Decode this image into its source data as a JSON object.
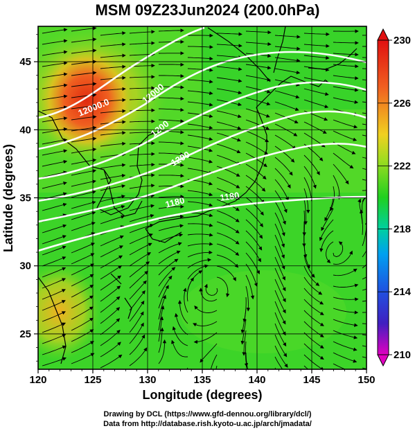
{
  "title": "MSM 09Z23Jun2024 (200.0hPa)",
  "x_axis": {
    "label": "Longitude (degrees)",
    "ticks": [
      "120",
      "125",
      "130",
      "135",
      "140",
      "145",
      "150"
    ],
    "range": [
      120,
      150
    ]
  },
  "y_axis": {
    "label": "Latitude  (degrees)",
    "ticks": [
      "25",
      "30",
      "35",
      "40",
      "45"
    ],
    "range": [
      22.4,
      47.6
    ]
  },
  "colorbar": {
    "labels": [
      "230",
      "226",
      "222",
      "218",
      "214",
      "210"
    ],
    "range": [
      210,
      230
    ],
    "colors": [
      "#e000c0",
      "#3030e0",
      "#00c8e0",
      "#00d880",
      "#20d020",
      "#80d820",
      "#f0e020",
      "#f08020",
      "#e02020"
    ]
  },
  "contour_labels": [
    "12000.0",
    "12000",
    "1200",
    "1200",
    "1180",
    "1180"
  ],
  "credits": {
    "line1": "Drawing by DCL (https://www.gfd-dennou.org/library/dcl/)",
    "line2": "Data from http://database.rish.kyoto-u.ac.jp/arch/jmadata/"
  }
}
